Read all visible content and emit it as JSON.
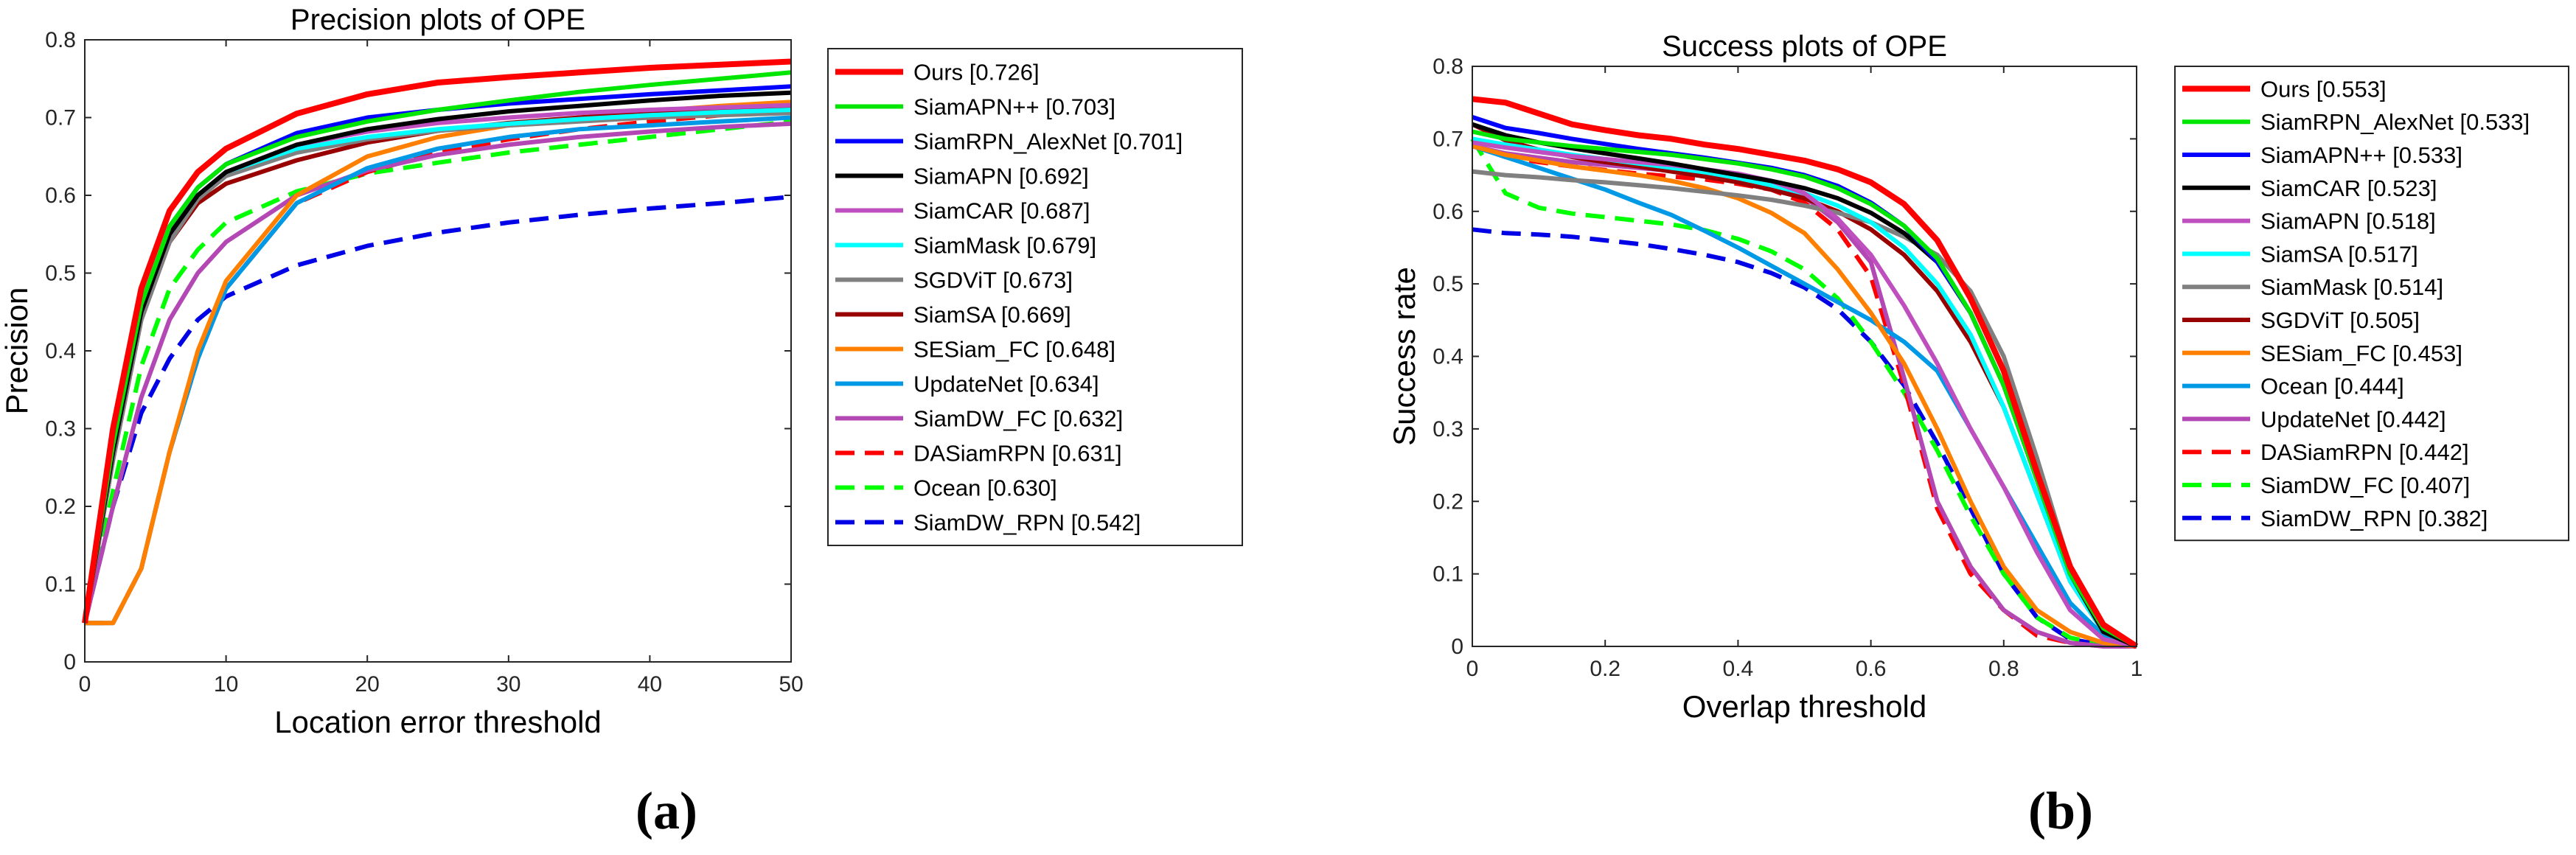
{
  "figure": {
    "panels": [
      {
        "caption": "(a)"
      },
      {
        "caption": "(b)"
      }
    ]
  },
  "chart_data": [
    {
      "type": "line",
      "title": "Precision plots of OPE",
      "xlabel": "Location error threshold",
      "ylabel": "Precision",
      "xlim": [
        0,
        50
      ],
      "ylim": [
        0,
        0.8
      ],
      "xticks": [
        0,
        10,
        20,
        30,
        40,
        50
      ],
      "xtick_labels": [
        "0",
        "10",
        "20",
        "30",
        "40",
        "50"
      ],
      "yticks": [
        0,
        0.1,
        0.2,
        0.3,
        0.4,
        0.5,
        0.6,
        0.7,
        0.8
      ],
      "ytick_labels": [
        "0",
        "0.1",
        "0.2",
        "0.3",
        "0.4",
        "0.5",
        "0.6",
        "0.7",
        "0.8"
      ],
      "legend_position": "outside-right",
      "x": [
        0,
        2,
        4,
        6,
        8,
        10,
        15,
        20,
        25,
        30,
        35,
        40,
        45,
        50
      ],
      "series": [
        {
          "name": "Ours",
          "legend": "Ours [0.726]",
          "color": "#ff0000",
          "style": "solid",
          "values": [
            0.05,
            0.3,
            0.48,
            0.58,
            0.63,
            0.66,
            0.705,
            0.73,
            0.745,
            0.752,
            0.758,
            0.764,
            0.768,
            0.772
          ]
        },
        {
          "name": "SiamAPN++",
          "legend": "SiamAPN++ [0.703]",
          "color": "#00e600",
          "style": "solid",
          "values": [
            0.05,
            0.28,
            0.46,
            0.56,
            0.61,
            0.64,
            0.675,
            0.695,
            0.71,
            0.722,
            0.733,
            0.742,
            0.75,
            0.758
          ]
        },
        {
          "name": "SiamRPN_AlexNet",
          "legend": "SiamRPN_AlexNet [0.701]",
          "color": "#0000ff",
          "style": "solid",
          "values": [
            0.05,
            0.28,
            0.46,
            0.56,
            0.61,
            0.64,
            0.68,
            0.7,
            0.71,
            0.718,
            0.724,
            0.73,
            0.735,
            0.74
          ]
        },
        {
          "name": "SiamAPN",
          "legend": "SiamAPN [0.692]",
          "color": "#000000",
          "style": "solid",
          "values": [
            0.05,
            0.27,
            0.45,
            0.55,
            0.6,
            0.63,
            0.665,
            0.685,
            0.698,
            0.708,
            0.715,
            0.722,
            0.728,
            0.732
          ]
        },
        {
          "name": "SiamCAR",
          "legend": "SiamCAR [0.687]",
          "color": "#bf4fbf",
          "style": "solid",
          "values": [
            0.05,
            0.27,
            0.45,
            0.55,
            0.6,
            0.63,
            0.665,
            0.682,
            0.693,
            0.7,
            0.706,
            0.71,
            0.713,
            0.716
          ]
        },
        {
          "name": "SiamMask",
          "legend": "SiamMask [0.679]",
          "color": "#00ffff",
          "style": "solid",
          "values": [
            0.05,
            0.27,
            0.45,
            0.55,
            0.6,
            0.63,
            0.66,
            0.675,
            0.685,
            0.692,
            0.698,
            0.703,
            0.707,
            0.71
          ]
        },
        {
          "name": "SGDViT",
          "legend": "SGDViT [0.673]",
          "color": "#808080",
          "style": "solid",
          "values": [
            0.05,
            0.26,
            0.44,
            0.54,
            0.595,
            0.625,
            0.655,
            0.672,
            0.683,
            0.69,
            0.695,
            0.7,
            0.703,
            0.706
          ]
        },
        {
          "name": "SiamSA",
          "legend": "SiamSA [0.669]",
          "color": "#990000",
          "style": "solid",
          "values": [
            0.05,
            0.26,
            0.44,
            0.54,
            0.59,
            0.615,
            0.645,
            0.668,
            0.683,
            0.693,
            0.7,
            0.706,
            0.711,
            0.715
          ]
        },
        {
          "name": "SESiam_FC",
          "legend": "SESiam_FC [0.648]",
          "color": "#ff8000",
          "style": "solid",
          "values": [
            0.05,
            0.05,
            0.12,
            0.27,
            0.4,
            0.49,
            0.6,
            0.65,
            0.675,
            0.69,
            0.7,
            0.708,
            0.715,
            0.72
          ]
        },
        {
          "name": "UpdateNet",
          "legend": "UpdateNet [0.634]",
          "color": "#0099e6",
          "style": "solid",
          "values": [
            0.05,
            0.05,
            0.12,
            0.27,
            0.39,
            0.48,
            0.59,
            0.635,
            0.66,
            0.675,
            0.685,
            0.69,
            0.695,
            0.7
          ]
        },
        {
          "name": "SiamDW_FC",
          "legend": "SiamDW_FC [0.632]",
          "color": "#b347b3",
          "style": "solid",
          "values": [
            0.05,
            0.2,
            0.34,
            0.44,
            0.5,
            0.54,
            0.6,
            0.632,
            0.652,
            0.665,
            0.675,
            0.682,
            0.688,
            0.692
          ]
        },
        {
          "name": "DASiamRPN",
          "legend": "DASiamRPN [0.631]",
          "color": "#ff0000",
          "style": "dashed",
          "values": [
            0.05,
            0.05,
            0.12,
            0.27,
            0.39,
            0.48,
            0.59,
            0.63,
            0.655,
            0.672,
            0.685,
            0.695,
            0.703,
            0.71
          ]
        },
        {
          "name": "Ocean",
          "legend": "Ocean [0.630]",
          "color": "#00ff00",
          "style": "dashed",
          "values": [
            0.05,
            0.22,
            0.38,
            0.48,
            0.53,
            0.565,
            0.605,
            0.628,
            0.642,
            0.655,
            0.665,
            0.675,
            0.685,
            0.695
          ]
        },
        {
          "name": "SiamDW_RPN",
          "legend": "SiamDW_RPN [0.542]",
          "color": "#0000e6",
          "style": "dashed",
          "values": [
            0.05,
            0.2,
            0.32,
            0.39,
            0.44,
            0.47,
            0.51,
            0.535,
            0.552,
            0.565,
            0.575,
            0.583,
            0.59,
            0.598
          ]
        }
      ]
    },
    {
      "type": "line",
      "title": "Success plots of OPE",
      "xlabel": "Overlap threshold",
      "ylabel": "Success rate",
      "xlim": [
        0,
        1
      ],
      "ylim": [
        0,
        0.8
      ],
      "xticks": [
        0,
        0.2,
        0.4,
        0.6,
        0.8,
        1
      ],
      "xtick_labels": [
        "0",
        "0.2",
        "0.4",
        "0.6",
        "0.8",
        "1"
      ],
      "yticks": [
        0,
        0.1,
        0.2,
        0.3,
        0.4,
        0.5,
        0.6,
        0.7,
        0.8
      ],
      "ytick_labels": [
        "0",
        "0.1",
        "0.2",
        "0.3",
        "0.4",
        "0.5",
        "0.6",
        "0.7",
        "0.8"
      ],
      "legend_position": "outside-right",
      "x": [
        0,
        0.05,
        0.1,
        0.15,
        0.2,
        0.25,
        0.3,
        0.35,
        0.4,
        0.45,
        0.5,
        0.55,
        0.6,
        0.65,
        0.7,
        0.75,
        0.8,
        0.85,
        0.9,
        0.95,
        1.0
      ],
      "series": [
        {
          "name": "Ours",
          "legend": "Ours [0.553]",
          "color": "#ff0000",
          "style": "solid",
          "values": [
            0.755,
            0.75,
            0.735,
            0.72,
            0.712,
            0.705,
            0.7,
            0.692,
            0.686,
            0.678,
            0.67,
            0.658,
            0.64,
            0.61,
            0.56,
            0.48,
            0.38,
            0.24,
            0.11,
            0.03,
            0.0
          ]
        },
        {
          "name": "SiamRPN_AlexNet",
          "legend": "SiamRPN_AlexNet [0.533]",
          "color": "#00e600",
          "style": "solid",
          "values": [
            0.71,
            0.7,
            0.695,
            0.69,
            0.686,
            0.682,
            0.678,
            0.672,
            0.666,
            0.658,
            0.648,
            0.632,
            0.61,
            0.58,
            0.535,
            0.46,
            0.36,
            0.23,
            0.1,
            0.025,
            0.0
          ]
        },
        {
          "name": "SiamAPN++",
          "legend": "SiamAPN++ [0.533]",
          "color": "#0000ff",
          "style": "solid",
          "values": [
            0.73,
            0.715,
            0.708,
            0.7,
            0.693,
            0.686,
            0.68,
            0.674,
            0.667,
            0.66,
            0.65,
            0.635,
            0.612,
            0.58,
            0.53,
            0.46,
            0.36,
            0.23,
            0.1,
            0.025,
            0.0
          ]
        },
        {
          "name": "SiamCAR",
          "legend": "SiamCAR [0.523]",
          "color": "#000000",
          "style": "solid",
          "values": [
            0.72,
            0.705,
            0.695,
            0.687,
            0.68,
            0.673,
            0.666,
            0.658,
            0.65,
            0.642,
            0.632,
            0.618,
            0.598,
            0.57,
            0.53,
            0.46,
            0.36,
            0.23,
            0.1,
            0.02,
            0.0
          ]
        },
        {
          "name": "SiamAPN",
          "legend": "SiamAPN [0.518]",
          "color": "#bf4fbf",
          "style": "solid",
          "values": [
            0.695,
            0.688,
            0.682,
            0.676,
            0.672,
            0.668,
            0.664,
            0.658,
            0.652,
            0.642,
            0.625,
            0.59,
            0.54,
            0.47,
            0.39,
            0.3,
            0.22,
            0.13,
            0.05,
            0.01,
            0.0
          ]
        },
        {
          "name": "SiamSA",
          "legend": "SiamSA [0.517]",
          "color": "#00ffff",
          "style": "solid",
          "values": [
            0.7,
            0.692,
            0.685,
            0.678,
            0.672,
            0.666,
            0.66,
            0.654,
            0.646,
            0.636,
            0.625,
            0.608,
            0.585,
            0.55,
            0.5,
            0.43,
            0.33,
            0.21,
            0.09,
            0.02,
            0.0
          ]
        },
        {
          "name": "SiamMask",
          "legend": "SiamMask [0.514]",
          "color": "#808080",
          "style": "solid",
          "values": [
            0.655,
            0.65,
            0.647,
            0.643,
            0.64,
            0.636,
            0.632,
            0.627,
            0.622,
            0.616,
            0.608,
            0.598,
            0.585,
            0.565,
            0.54,
            0.49,
            0.4,
            0.26,
            0.11,
            0.02,
            0.0
          ]
        },
        {
          "name": "SGDViT",
          "legend": "SGDViT [0.505]",
          "color": "#990000",
          "style": "solid",
          "values": [
            0.72,
            0.698,
            0.685,
            0.675,
            0.668,
            0.662,
            0.655,
            0.648,
            0.64,
            0.63,
            0.618,
            0.6,
            0.575,
            0.54,
            0.49,
            0.42,
            0.33,
            0.21,
            0.09,
            0.02,
            0.0
          ]
        },
        {
          "name": "SESiam_FC",
          "legend": "SESiam_FC [0.453]",
          "color": "#ff8000",
          "style": "solid",
          "values": [
            0.69,
            0.678,
            0.67,
            0.662,
            0.656,
            0.65,
            0.642,
            0.632,
            0.618,
            0.598,
            0.57,
            0.52,
            0.46,
            0.39,
            0.3,
            0.2,
            0.11,
            0.05,
            0.02,
            0.005,
            0.0
          ]
        },
        {
          "name": "Ocean",
          "legend": "Ocean [0.444]",
          "color": "#0099e6",
          "style": "solid",
          "values": [
            0.69,
            0.675,
            0.66,
            0.645,
            0.63,
            0.612,
            0.595,
            0.573,
            0.55,
            0.525,
            0.5,
            0.475,
            0.45,
            0.42,
            0.38,
            0.3,
            0.22,
            0.14,
            0.06,
            0.015,
            0.0
          ]
        },
        {
          "name": "UpdateNet",
          "legend": "UpdateNet [0.442]",
          "color": "#b347b3",
          "style": "solid",
          "values": [
            0.69,
            0.68,
            0.674,
            0.668,
            0.664,
            0.66,
            0.656,
            0.652,
            0.646,
            0.638,
            0.62,
            0.585,
            0.53,
            0.37,
            0.2,
            0.11,
            0.05,
            0.02,
            0.005,
            0.0,
            0.0
          ]
        },
        {
          "name": "DASiamRPN",
          "legend": "DASiamRPN [0.442]",
          "color": "#ff0000",
          "style": "dashed",
          "values": [
            0.69,
            0.675,
            0.668,
            0.662,
            0.657,
            0.652,
            0.648,
            0.644,
            0.638,
            0.63,
            0.612,
            0.575,
            0.51,
            0.36,
            0.19,
            0.1,
            0.05,
            0.015,
            0.005,
            0.0,
            0.0
          ]
        },
        {
          "name": "SiamDW_FC",
          "legend": "SiamDW_FC [0.407]",
          "color": "#00ff00",
          "style": "dashed",
          "values": [
            0.7,
            0.625,
            0.605,
            0.597,
            0.592,
            0.587,
            0.582,
            0.574,
            0.562,
            0.545,
            0.52,
            0.48,
            0.42,
            0.35,
            0.27,
            0.18,
            0.1,
            0.04,
            0.012,
            0.002,
            0.0
          ]
        },
        {
          "name": "SiamDW_RPN",
          "legend": "SiamDW_RPN [0.382]",
          "color": "#0000e6",
          "style": "dashed",
          "values": [
            0.575,
            0.57,
            0.568,
            0.565,
            0.56,
            0.555,
            0.548,
            0.54,
            0.53,
            0.515,
            0.495,
            0.465,
            0.42,
            0.36,
            0.28,
            0.19,
            0.1,
            0.04,
            0.01,
            0.002,
            0.0
          ]
        }
      ]
    }
  ]
}
